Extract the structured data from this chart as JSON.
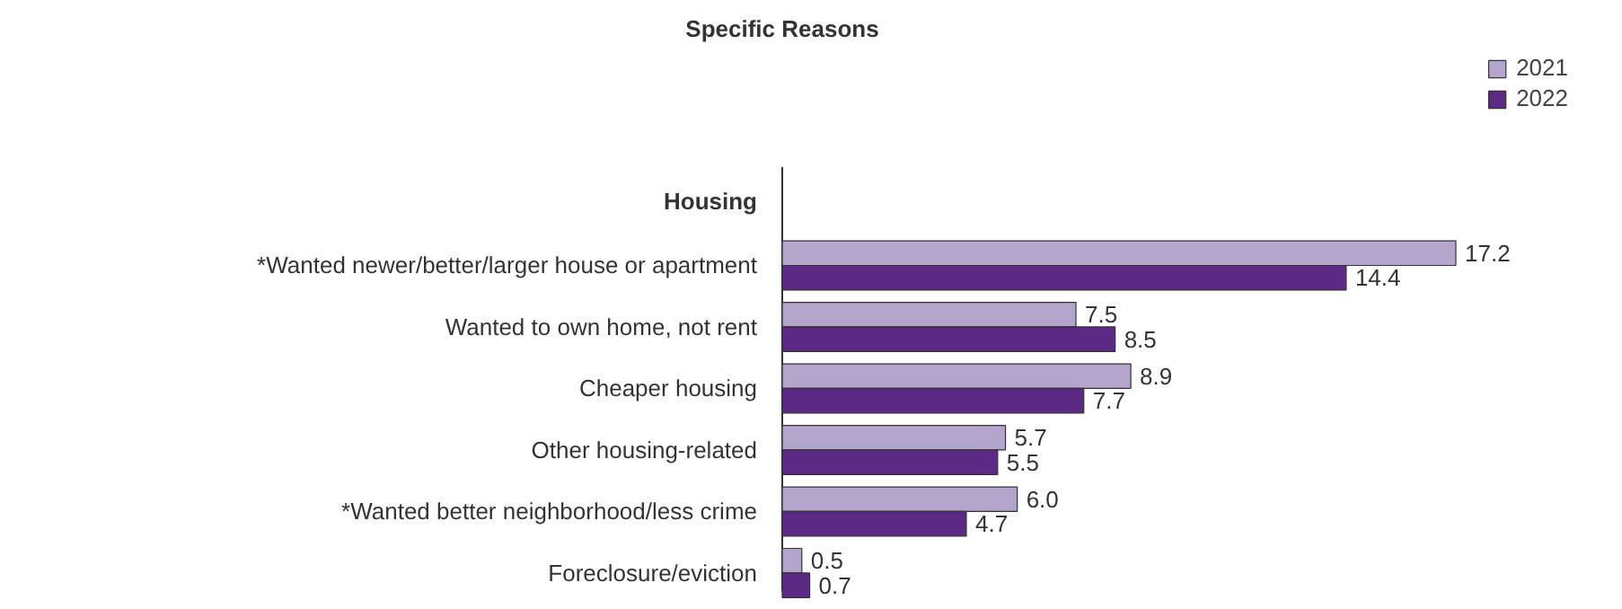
{
  "chart_data": {
    "type": "bar",
    "orientation": "horizontal",
    "title": "Specific Reasons",
    "annotations": [
      "Housing"
    ],
    "categories": [
      "*Wanted newer/better/larger house or apartment",
      "Wanted to own home, not rent",
      "Cheaper housing",
      "Other housing-related",
      "*Wanted better neighborhood/less crime",
      "Foreclosure/eviction"
    ],
    "series": [
      {
        "name": "2021",
        "color": "#b4a5cc",
        "values": [
          17.2,
          7.5,
          8.9,
          5.7,
          6.0,
          0.5
        ],
        "value_labels": [
          "17.2",
          "7.5",
          "8.9",
          "5.7",
          "6.0",
          "0.5"
        ]
      },
      {
        "name": "2022",
        "color": "#5c2a84",
        "values": [
          14.4,
          8.5,
          7.7,
          5.5,
          4.7,
          0.7
        ],
        "value_labels": [
          "14.4",
          "8.5",
          "7.7",
          "5.5",
          "4.7",
          "0.7"
        ]
      }
    ],
    "legend": "top right",
    "grid": false
  }
}
